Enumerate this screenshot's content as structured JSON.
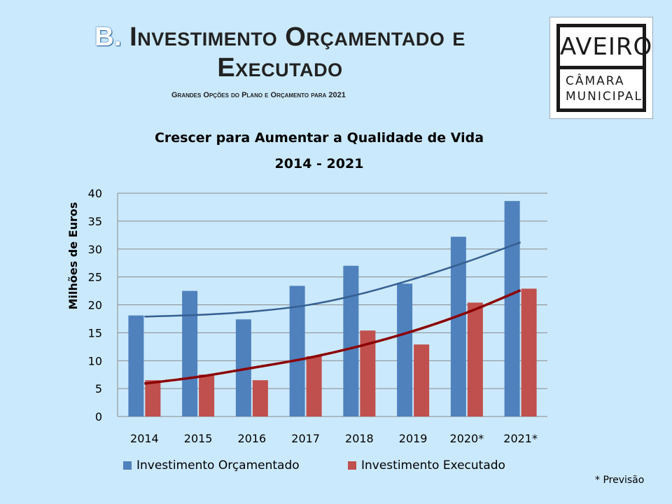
{
  "slide": {
    "title_prefix": "B.",
    "title_rest": " Investimento Orçamentado e",
    "title_line2": "Executado",
    "subtitle": "Grandes Opções do Plano e Orçamento para 2021",
    "footnote": "* Previsão"
  },
  "logo": {
    "top": "AVEIRO",
    "line1": "CÂMARA",
    "line2": "MUNICIPAL"
  },
  "colors": {
    "background": "#cbe9fc",
    "orcamentado": "#4f81bd",
    "executado": "#c0504d",
    "trend_orcamentado": "#365f91",
    "trend_executado": "#8b0000"
  },
  "chart_data": {
    "type": "bar",
    "title": "Crescer para Aumentar a Qualidade de Vida",
    "subtitle": "2014 - 2021",
    "xlabel": "",
    "ylabel": "Milhões de Euros",
    "ylim": [
      0,
      40
    ],
    "yticks": [
      0,
      5,
      10,
      15,
      20,
      25,
      30,
      35,
      40
    ],
    "grid": true,
    "legend": "bottom",
    "categories": [
      "2014",
      "2015",
      "2016",
      "2017",
      "2018",
      "2019",
      "2020*",
      "2021*"
    ],
    "series": [
      {
        "name": "Investimento Orçamentado",
        "values": [
          18.1,
          22.5,
          17.4,
          23.4,
          27.0,
          23.8,
          32.2,
          38.6
        ]
      },
      {
        "name": "Investimento Executado",
        "values": [
          6.5,
          7.5,
          6.5,
          10.8,
          15.4,
          12.9,
          20.4,
          22.9
        ]
      }
    ],
    "trendlines": [
      {
        "series": "Investimento Orçamentado",
        "values": [
          17.9,
          18.2,
          18.8,
          19.9,
          21.9,
          24.6,
          27.7,
          31.2
        ]
      },
      {
        "series": "Investimento Executado",
        "values": [
          5.9,
          7.1,
          8.7,
          10.4,
          12.6,
          15.3,
          18.6,
          22.6
        ]
      }
    ]
  }
}
